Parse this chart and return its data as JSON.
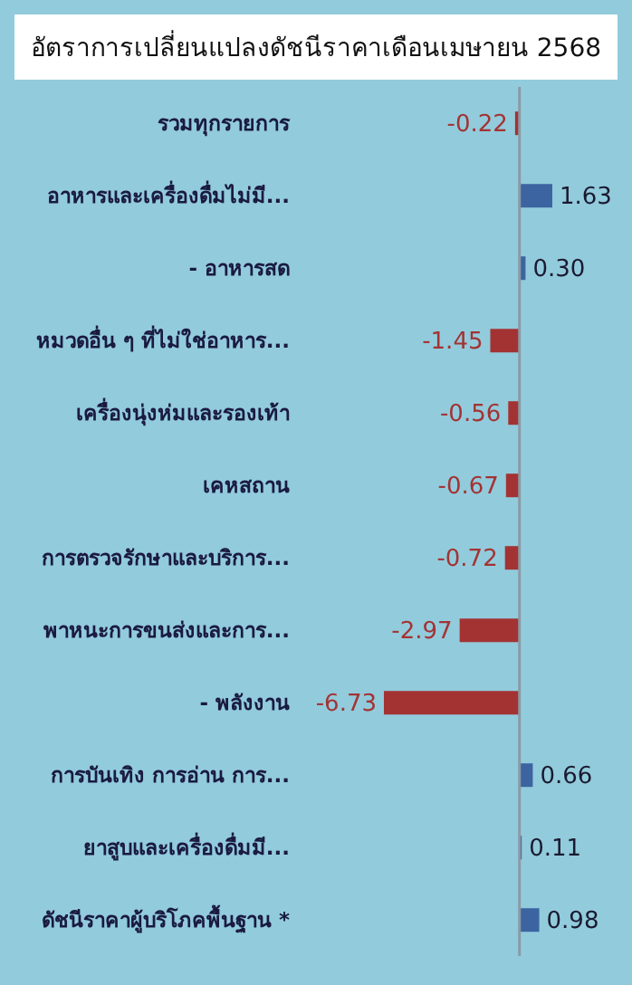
{
  "chart_data": {
    "type": "bar",
    "orientation": "horizontal",
    "title": "อัตราการเปลี่ยนแปลงดัชนีราคาเดือนเมษายน 2568",
    "categories": [
      "รวมทุกรายการ",
      "อาหารและเครื่องดื่มไม่มี...",
      "- อาหารสด",
      "หมวดอื่น ๆ ที่ไม่ใช่อาหาร...",
      "เครื่องนุ่งห่มและรองเท้า",
      "เคหสถาน",
      "การตรวจรักษาและบริการ...",
      "พาหนะการขนส่งและการ...",
      "- พลังงาน",
      "การบันเทิง การอ่าน การ...",
      "ยาสูบและเครื่องดื่มมี...",
      "ดัชนีราคาผู้บริโภคพื้นฐาน *"
    ],
    "values": [
      -0.22,
      1.63,
      0.3,
      -1.45,
      -0.56,
      -0.67,
      -0.72,
      -2.97,
      -6.73,
      0.66,
      0.11,
      0.98
    ],
    "value_labels": [
      "-0.22",
      "1.63",
      "0.30",
      "-1.45",
      "-0.56",
      "-0.67",
      "-0.72",
      "-2.97",
      "-6.73",
      "0.66",
      "0.11",
      "0.98"
    ],
    "colors": [
      "#a33333",
      "#3c64a0",
      "#3c64a0",
      "#a33333",
      "#a33333",
      "#a33333",
      "#a33333",
      "#a33333",
      "#a33333",
      "#3c64a0",
      "#3c64a0",
      "#3c64a0"
    ],
    "tick_labels": "y"
  }
}
